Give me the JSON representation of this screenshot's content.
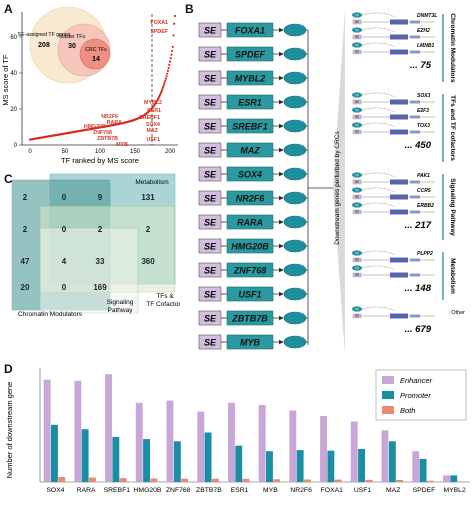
{
  "panel_labels": {
    "a": "A",
    "b": "B",
    "c": "C",
    "d": "D"
  },
  "panel_a": {
    "xlabel": "TF ranked by MS score",
    "ylabel": "MS score of TF",
    "x_ticks": [
      "0",
      "50",
      "100",
      "150",
      "200"
    ],
    "y_ticks": [
      "0",
      "20",
      "40",
      "60"
    ],
    "venn": {
      "outer_label": "SE-assigned TF genes",
      "outer_count": "208",
      "middle_label": "Master TFs",
      "middle_count": "30",
      "inner_label": "CRC TFs",
      "inner_count": "14"
    },
    "highlighted_tfs": [
      "FOXA1",
      "SPDEF",
      "MYBL2",
      "ESR1",
      "SREBF1",
      "SOX4",
      "MAZ",
      "NR2F6",
      "RARA",
      "HMG20B",
      "ZNF768",
      "ZBTB7B",
      "USF1",
      "MYB"
    ]
  },
  "panel_b": {
    "se_label": "SE",
    "tfs": [
      "FOXA1",
      "SPDEF",
      "MYBL2",
      "ESR1",
      "SREBF1",
      "MAZ",
      "SOX4",
      "NR2F6",
      "RARA",
      "HMG20B",
      "ZNF768",
      "USF1",
      "ZBTB7B",
      "MYB"
    ],
    "side_title": "Downstream genes perturbed by CRCs",
    "tp_label": "TF",
    "se_small": "SE",
    "groups": [
      {
        "name": "Chromatin Modulators",
        "genes": [
          "DNMT3L",
          "EZH2",
          "LMNB1"
        ],
        "count": "75"
      },
      {
        "name": "TFs and TF cofactors",
        "genes": [
          "SOX3",
          "E2F3",
          "TOX3"
        ],
        "count": "450"
      },
      {
        "name": "Signaling Pathway",
        "genes": [
          "PAK1",
          "CCR5",
          "ERBB2"
        ],
        "count": "217"
      },
      {
        "name": "Metabolism",
        "genes": [
          "PLPP2"
        ],
        "count": "148"
      },
      {
        "name": "Other",
        "genes": [],
        "count": "679"
      }
    ]
  },
  "panel_c": {
    "labels": {
      "metabolism": "Metabolism",
      "tfs": "TFs &\nTF Cofactors",
      "chromatin": "Chromatin Modulators",
      "signaling": "Signaling\nPathway"
    },
    "rows": [
      [
        "2",
        "0",
        "9",
        "131"
      ],
      [
        "2",
        "0",
        "2",
        "2"
      ],
      [
        "47",
        "4",
        "33",
        "360"
      ],
      [
        "20",
        "0",
        "169",
        ""
      ]
    ]
  },
  "chart_data": {
    "type": "bar",
    "ylabel": "Number of downstream gene",
    "categories": [
      "SOX4",
      "RARA",
      "SREBF1",
      "HMG20B",
      "ZNF768",
      "ZBTB7B",
      "ESR1",
      "MYB",
      "NR2F6",
      "FOXA1",
      "USF1",
      "MAZ",
      "SPDEF",
      "MYBL2"
    ],
    "ylim": [
      0,
      1000
    ],
    "legend": "top-right",
    "series": [
      {
        "name": "Enhancer",
        "color": "#c9a6d8",
        "values": [
          930,
          920,
          980,
          720,
          740,
          640,
          720,
          700,
          650,
          600,
          550,
          470,
          280,
          60
        ]
      },
      {
        "name": "Promoter",
        "color": "#1a8fa3",
        "values": [
          520,
          480,
          410,
          390,
          370,
          450,
          330,
          280,
          290,
          285,
          300,
          370,
          210,
          60
        ]
      },
      {
        "name": "Both",
        "color": "#e98a74",
        "values": [
          45,
          40,
          35,
          33,
          30,
          30,
          28,
          25,
          23,
          22,
          20,
          18,
          12,
          5
        ]
      }
    ]
  }
}
